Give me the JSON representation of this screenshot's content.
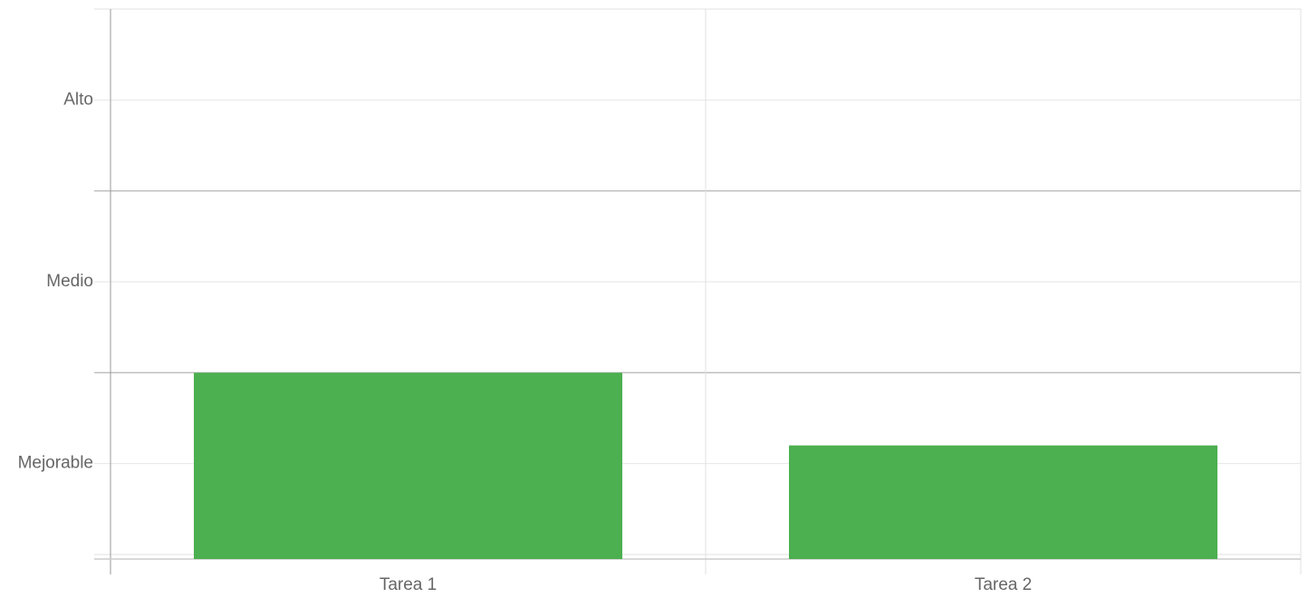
{
  "chart_data": {
    "type": "bar",
    "categories": [
      "Tarea 1",
      "Tarea 2"
    ],
    "values": [
      2,
      1.2
    ],
    "color": "#4caf50",
    "ylim": [
      0,
      6
    ],
    "yticks": [
      {
        "value": 1,
        "label": "Mejorable"
      },
      {
        "value": 3,
        "label": "Medio"
      },
      {
        "value": 5,
        "label": "Alto"
      }
    ],
    "boundaries": [
      2,
      4
    ],
    "grid": true
  }
}
